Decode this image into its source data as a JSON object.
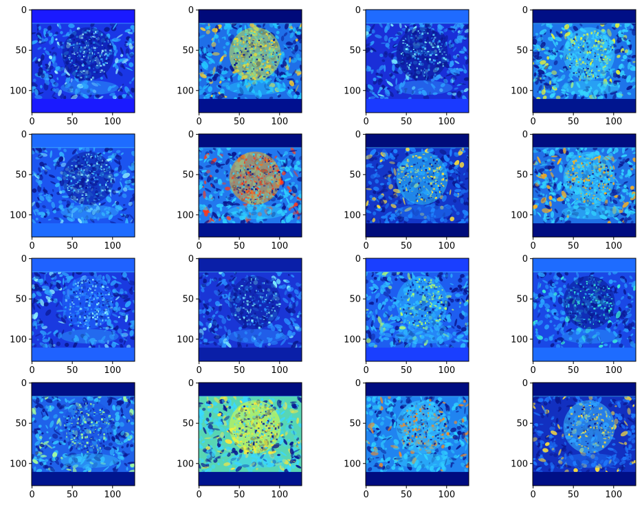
{
  "figure": {
    "grid_rows": 4,
    "grid_cols": 4,
    "colormap": "jet",
    "image_extent": [
      0,
      128
    ],
    "x_ticks": [
      "0",
      "50",
      "100"
    ],
    "y_ticks": [
      "0",
      "50",
      "100"
    ],
    "x_tick_values": [
      0,
      50,
      100
    ],
    "y_tick_values": [
      0,
      50,
      100
    ],
    "band_rows": {
      "top_end": 17,
      "bottom_start": 111
    },
    "panels": [
      {
        "band_top": "#1a1aff",
        "band_bottom": "#1a1aff",
        "field": "#1a37e6",
        "activity": 0.25,
        "blob_color": "#0a1a9a",
        "texture": "#2ea8ff",
        "highlight": "#9ff2ff"
      },
      {
        "band_top": "#000a7a",
        "band_bottom": "#00108f",
        "field": "#1f6fe8",
        "activity": 0.55,
        "blob_color": "#c8e84a",
        "texture": "#24c8ff",
        "highlight": "#ffd22a"
      },
      {
        "band_top": "#1f6bff",
        "band_bottom": "#1a3aff",
        "field": "#1a2fd8",
        "activity": 0.22,
        "blob_color": "#0a1a8f",
        "texture": "#2ea0ff",
        "highlight": "#7ff5ff"
      },
      {
        "band_top": "#000f86",
        "band_bottom": "#00158f",
        "field": "#1e74ea",
        "activity": 0.5,
        "blob_color": "#3bd0ff",
        "texture": "#36d6ff",
        "highlight": "#e6f83a"
      },
      {
        "band_top": "#1e6cff",
        "band_bottom": "#1e6cff",
        "field": "#1c55f0",
        "activity": 0.3,
        "blob_color": "#0b1f9e",
        "texture": "#35b6ff",
        "highlight": "#8ff0ff"
      },
      {
        "band_top": "#000c80",
        "band_bottom": "#00138f",
        "field": "#2278ee",
        "activity": 0.6,
        "blob_color": "#f2a21a",
        "texture": "#2fd0ff",
        "highlight": "#ff3a1a"
      },
      {
        "band_top": "#000c7a",
        "band_bottom": "#000c7a",
        "field": "#1336c8",
        "activity": 0.35,
        "blob_color": "#2cc8ff",
        "texture": "#1f86ff",
        "highlight": "#ffe23a"
      },
      {
        "band_top": "#000c80",
        "band_bottom": "#000c80",
        "field": "#2070e6",
        "activity": 0.55,
        "blob_color": "#36d0ff",
        "texture": "#32d4ff",
        "highlight": "#ffb21a"
      },
      {
        "band_top": "#1f62ff",
        "band_bottom": "#1f62ff",
        "field": "#1a3ae0",
        "activity": 0.28,
        "blob_color": "#1f6bff",
        "texture": "#2fa6ff",
        "highlight": "#90f4ff"
      },
      {
        "band_top": "#0a1fa8",
        "band_bottom": "#0a1fa8",
        "field": "#1a36d6",
        "activity": 0.24,
        "blob_color": "#0d1f9e",
        "texture": "#2a90ff",
        "highlight": "#7ff0ff"
      },
      {
        "band_top": "#1a3fff",
        "band_bottom": "#1a3fff",
        "field": "#1e5ef0",
        "activity": 0.4,
        "blob_color": "#2ab8ff",
        "texture": "#2fbaff",
        "highlight": "#b8ff6a"
      },
      {
        "band_top": "#1e6cff",
        "band_bottom": "#1e6cff",
        "field": "#1a48e6",
        "activity": 0.3,
        "blob_color": "#0a1a8f",
        "texture": "#2aa2ff",
        "highlight": "#3effd6"
      },
      {
        "band_top": "#000f86",
        "band_bottom": "#00158f",
        "field": "#1f62ea",
        "activity": 0.4,
        "blob_color": "#1a50e0",
        "texture": "#34c4ff",
        "highlight": "#a8ff9a"
      },
      {
        "band_top": "#000c80",
        "band_bottom": "#00138f",
        "field": "#58d6b4",
        "activity": 0.7,
        "blob_color": "#e6ff3a",
        "texture": "#3ad8ff",
        "highlight": "#ffe63a"
      },
      {
        "band_top": "#000c80",
        "band_bottom": "#000c80",
        "field": "#2084f0",
        "activity": 0.5,
        "blob_color": "#3ac8ff",
        "texture": "#30d2ff",
        "highlight": "#ff8a1a"
      },
      {
        "band_top": "#000f86",
        "band_bottom": "#000f86",
        "field": "#1230c0",
        "activity": 0.3,
        "blob_color": "#3ac0ff",
        "texture": "#1f7cff",
        "highlight": "#ffe23a"
      }
    ]
  }
}
